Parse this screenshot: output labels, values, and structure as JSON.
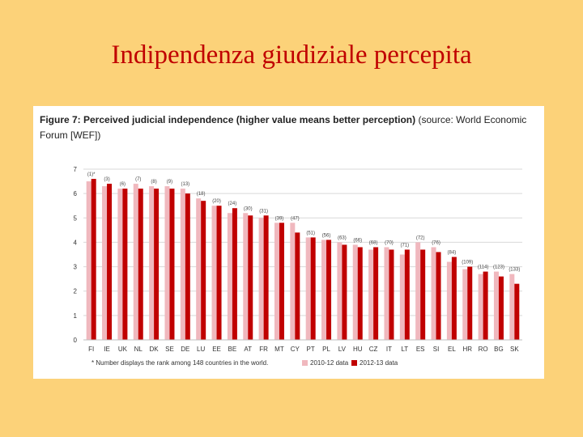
{
  "slide": {
    "title": "Indipendenza giudiziale percepita"
  },
  "figure": {
    "caption_bold": "Figure 7: Perceived judicial independence (higher value means better perception)",
    "caption_rest": " (source: World Economic Forum [WEF])",
    "footnote": "* Number displays the rank among 148 countries in the world."
  },
  "chart_data": {
    "type": "bar",
    "categories": [
      "FI",
      "IE",
      "UK",
      "NL",
      "DK",
      "SE",
      "DE",
      "LU",
      "EE",
      "BE",
      "AT",
      "FR",
      "MT",
      "CY",
      "PT",
      "PL",
      "LV",
      "HU",
      "CZ",
      "IT",
      "LT",
      "ES",
      "SI",
      "EL",
      "HR",
      "RO",
      "BG",
      "SK"
    ],
    "series": [
      {
        "name": "2010-12 data",
        "color": "#F0B8BE",
        "values": [
          6.5,
          6.3,
          6.2,
          6.4,
          6.3,
          6.3,
          6.2,
          5.8,
          5.5,
          5.2,
          5.2,
          5.0,
          4.8,
          4.8,
          4.2,
          4.1,
          4.0,
          3.9,
          3.7,
          3.8,
          3.5,
          4.0,
          3.8,
          3.2,
          2.9,
          2.7,
          2.8,
          2.7
        ]
      },
      {
        "name": "2012-13 data",
        "color": "#C00000",
        "values": [
          6.6,
          6.4,
          6.2,
          6.2,
          6.2,
          6.2,
          6.0,
          5.7,
          5.5,
          5.4,
          5.1,
          5.1,
          4.8,
          4.4,
          4.2,
          4.1,
          3.9,
          3.8,
          3.8,
          3.7,
          3.7,
          3.7,
          3.6,
          3.4,
          3.0,
          2.8,
          2.6,
          2.3
        ]
      }
    ],
    "rank_labels": [
      "(1)*",
      "(3)",
      "(6)",
      "(7)",
      "(8)",
      "(9)",
      "(13)",
      "(18)",
      "(20)",
      "(24)",
      "(30)",
      "(31)",
      "(39)",
      "(47)",
      "(51)",
      "(56)",
      "(63)",
      "(66)",
      "(68)",
      "(70)",
      "(71)",
      "(72)",
      "(76)",
      "(84)",
      "(109)",
      "(114)",
      "(123)",
      "(133)"
    ],
    "ylim": [
      0,
      7
    ],
    "yticks": [
      0,
      1,
      2,
      3,
      4,
      5,
      6,
      7
    ],
    "grid": true,
    "legend_position": "bottom"
  }
}
